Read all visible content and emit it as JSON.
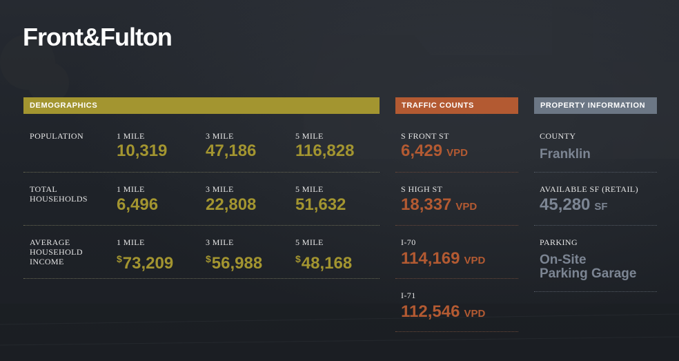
{
  "brand": {
    "logo": "Front&Fulton"
  },
  "colors": {
    "demographics": "#a39530",
    "traffic": "#b35a32",
    "property": "#7c8593"
  },
  "demographics": {
    "header": "DEMOGRAPHICS",
    "rows": [
      {
        "label": "POPULATION",
        "cells": [
          {
            "radius": "1 MILE",
            "value": "10,319",
            "currency": ""
          },
          {
            "radius": "3 MILE",
            "value": "47,186",
            "currency": ""
          },
          {
            "radius": "5 MILE",
            "value": "116,828",
            "currency": ""
          }
        ]
      },
      {
        "label": "TOTAL HOUSEHOLDS",
        "cells": [
          {
            "radius": "1 MILE",
            "value": "6,496",
            "currency": ""
          },
          {
            "radius": "3 MILE",
            "value": "22,808",
            "currency": ""
          },
          {
            "radius": "5 MILE",
            "value": "51,632",
            "currency": ""
          }
        ]
      },
      {
        "label": "AVERAGE HOUSEHOLD INCOME",
        "cells": [
          {
            "radius": "1 MILE",
            "value": "73,209",
            "currency": "$"
          },
          {
            "radius": "3 MILE",
            "value": "56,988",
            "currency": "$"
          },
          {
            "radius": "5 MILE",
            "value": "48,168",
            "currency": "$"
          }
        ]
      }
    ]
  },
  "traffic": {
    "header": "TRAFFIC COUNTS",
    "unit": "VPD",
    "items": [
      {
        "street": "S FRONT ST",
        "count": "6,429"
      },
      {
        "street": "S HIGH ST",
        "count": "18,337"
      },
      {
        "street": "I-70",
        "count": "114,169"
      },
      {
        "street": "I-71",
        "count": "112,546"
      }
    ]
  },
  "property": {
    "header": "PROPERTY INFORMATION",
    "county_label": "COUNTY",
    "county_value": "Franklin",
    "sf_label": "AVAILABLE SF (RETAIL)",
    "sf_value": "45,280",
    "sf_unit": "SF",
    "parking_label": "PARKING",
    "parking_line1": "On-Site",
    "parking_line2": "Parking Garage"
  }
}
